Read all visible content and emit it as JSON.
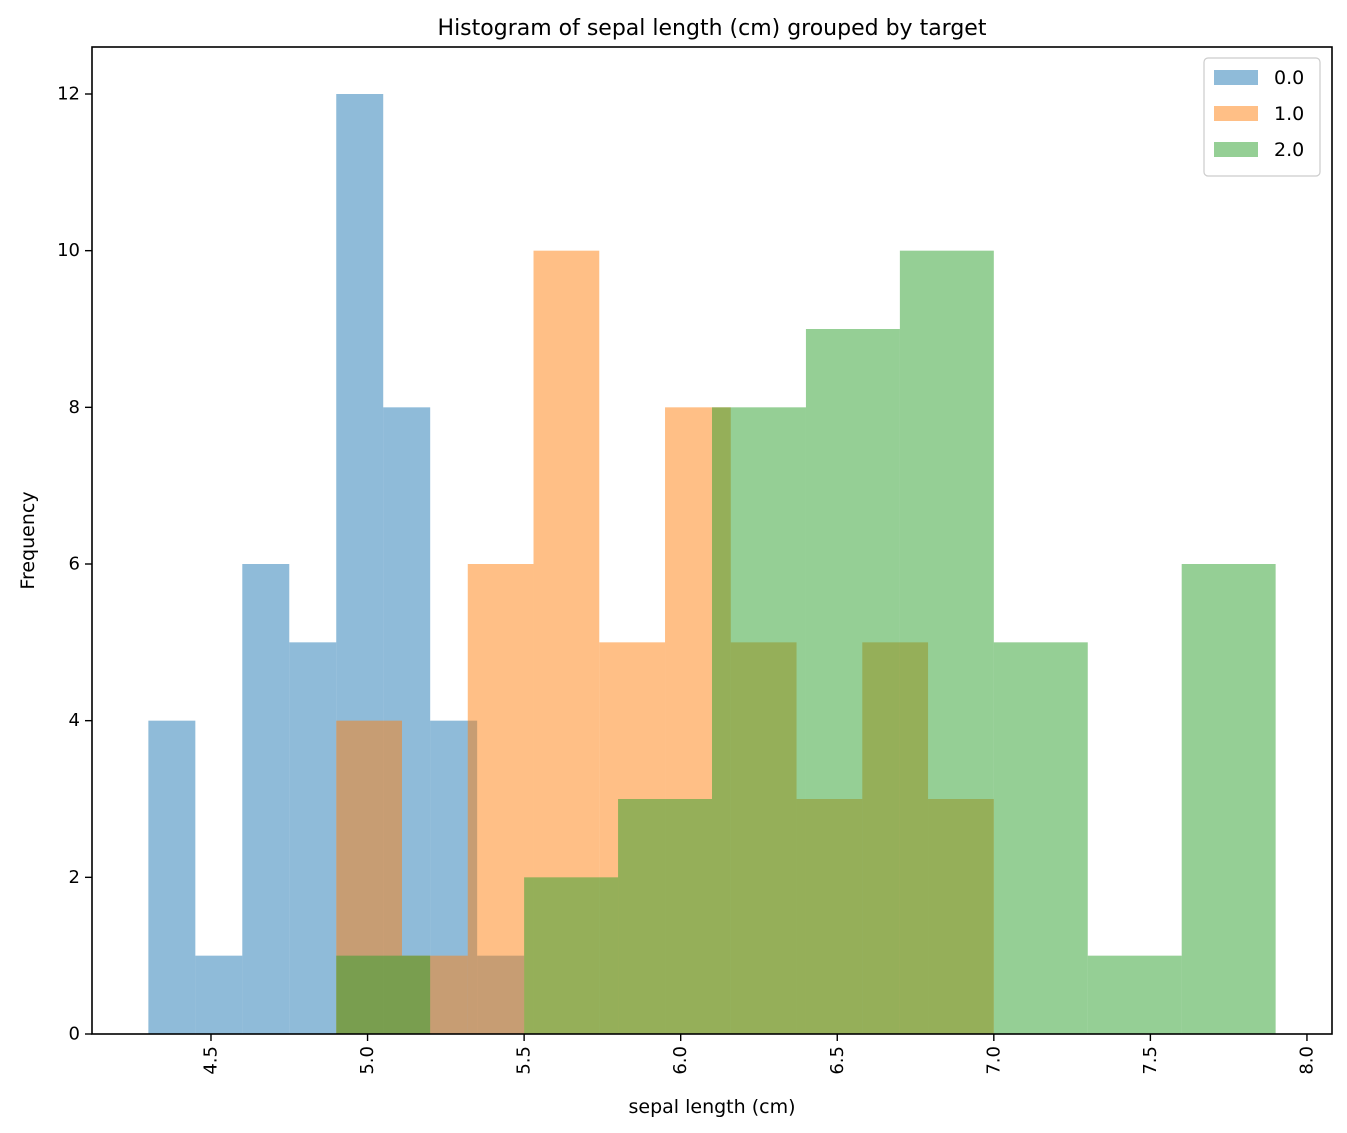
{
  "chart_data": {
    "type": "bar",
    "subtype": "histogram",
    "title": "Histogram of sepal length (cm) grouped by target",
    "xlabel": "sepal length (cm)",
    "ylabel": "Frequency",
    "xlim": [
      4.12,
      8.08
    ],
    "ylim": [
      0,
      12.6
    ],
    "xticks": [
      4.5,
      5.0,
      5.5,
      6.0,
      6.5,
      7.0,
      7.5,
      8.0
    ],
    "xtick_labels": [
      "4.5",
      "5.0",
      "5.5",
      "6.0",
      "6.5",
      "7.0",
      "7.5",
      "8.0"
    ],
    "xtick_rotation": 90,
    "yticks": [
      0,
      2,
      4,
      6,
      8,
      10,
      12
    ],
    "ytick_labels": [
      "0",
      "2",
      "4",
      "6",
      "8",
      "10",
      "12"
    ],
    "grid": false,
    "legend_position": "top-right",
    "series": [
      {
        "name": "0.0",
        "color": "#1f77b4",
        "alpha": 0.5,
        "bin_edges": [
          4.3,
          4.45,
          4.6,
          4.75,
          4.9,
          5.05,
          5.2,
          5.35,
          5.5,
          5.65,
          5.8
        ],
        "counts": [
          4,
          1,
          6,
          5,
          12,
          8,
          4,
          1,
          0,
          0
        ]
      },
      {
        "name": "1.0",
        "color": "#ff7f0e",
        "alpha": 0.5,
        "bin_edges": [
          4.9,
          5.11,
          5.32,
          5.53,
          5.74,
          5.95,
          6.16,
          6.37,
          6.58,
          6.79,
          7.0
        ],
        "counts": [
          4,
          1,
          6,
          10,
          5,
          8,
          5,
          3,
          5,
          3
        ]
      },
      {
        "name": "2.0",
        "color": "#2ca02c",
        "alpha": 0.5,
        "bin_edges": [
          4.9,
          5.2,
          5.5,
          5.8,
          6.1,
          6.4,
          6.7,
          7.0,
          7.3,
          7.6,
          7.9
        ],
        "counts": [
          1,
          0,
          2,
          3,
          8,
          9,
          10,
          5,
          1,
          6
        ]
      }
    ]
  }
}
